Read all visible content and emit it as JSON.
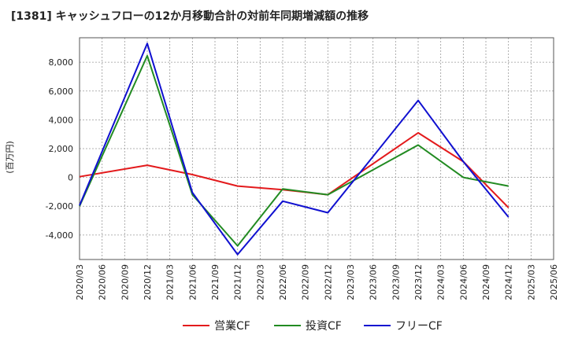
{
  "chart_data": {
    "type": "line",
    "title": "[1381]  キャッシュフローの12か月移動合計の対前年同期増減額の推移",
    "ylabel": "(百万円)",
    "xlabel": "",
    "ylim": [
      -5700,
      9700
    ],
    "y_ticks": [
      -4000,
      -2000,
      0,
      2000,
      4000,
      6000,
      8000
    ],
    "y_tick_labels": [
      "-4,000",
      "-2,000",
      "0",
      "2,000",
      "4,000",
      "6,000",
      "8,000"
    ],
    "categories": [
      "2020/03",
      "2020/06",
      "2020/09",
      "2020/12",
      "2021/03",
      "2021/06",
      "2021/09",
      "2021/12",
      "2022/03",
      "2022/06",
      "2022/09",
      "2022/12",
      "2023/03",
      "2023/06",
      "2023/09",
      "2023/12",
      "2024/03",
      "2024/06",
      "2024/09",
      "2024/12",
      "2025/03",
      "2025/06"
    ],
    "grid": true,
    "legend_position": "bottom",
    "series": [
      {
        "name": "営業CF",
        "color": "#e31a1c",
        "values": [
          50,
          null,
          null,
          850,
          null,
          200,
          null,
          -600,
          null,
          -850,
          null,
          -1200,
          null,
          null,
          null,
          3100,
          null,
          1100,
          null,
          -2100,
          null,
          null
        ]
      },
      {
        "name": "投資CF",
        "color": "#228b22",
        "values": [
          -2000,
          null,
          null,
          8450,
          null,
          -1200,
          null,
          -4750,
          null,
          -800,
          null,
          -1200,
          null,
          null,
          null,
          2250,
          null,
          0,
          null,
          -600,
          null,
          null
        ]
      },
      {
        "name": "フリーCF",
        "color": "#1010d0",
        "values": [
          -1950,
          null,
          null,
          9300,
          null,
          -1050,
          null,
          -5350,
          null,
          -1650,
          null,
          -2450,
          null,
          null,
          null,
          5350,
          null,
          1100,
          null,
          -2750,
          null,
          null
        ]
      }
    ]
  }
}
